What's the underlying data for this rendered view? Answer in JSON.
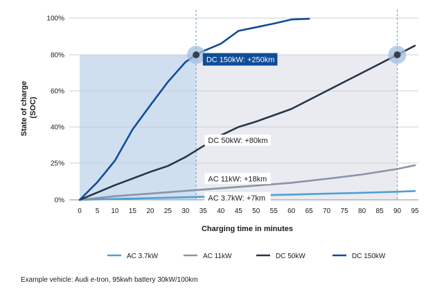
{
  "chart_data": {
    "type": "line",
    "xlabel": "Charging time in minutes",
    "ylabel_line1": "State of charge",
    "ylabel_line2": "(SOC)",
    "x_ticks": [
      0,
      5,
      10,
      15,
      20,
      25,
      30,
      35,
      40,
      45,
      50,
      55,
      60,
      65,
      70,
      75,
      80,
      85,
      90,
      95
    ],
    "xlim": [
      0,
      95
    ],
    "y_ticks": [
      {
        "value": 0,
        "label": "0%"
      },
      {
        "value": 25,
        "label": "25%"
      },
      {
        "value": 40,
        "label": "40%"
      },
      {
        "value": 60,
        "label": "60%"
      },
      {
        "value": 80,
        "label": "80%"
      },
      {
        "value": 100,
        "label": "100%"
      }
    ],
    "shaded_regions": [
      {
        "x_from": 0,
        "x_to": 33,
        "y_to": 80,
        "color": "#cfdff0"
      },
      {
        "x_from": 33,
        "x_to": 90,
        "y_to": 80,
        "color": "#e9ebf0"
      }
    ],
    "reference_lines_x": [
      33,
      90
    ],
    "markers": [
      {
        "x": 33,
        "y": 80
      },
      {
        "x": 90,
        "y": 80
      }
    ],
    "series": [
      {
        "name": "AC 3.7kW",
        "color": "#4e9fd6",
        "x": [
          0,
          10,
          20,
          30,
          40,
          50,
          60,
          70,
          80,
          90,
          95
        ],
        "y": [
          0,
          0.6,
          1.2,
          1.8,
          2.4,
          3.0,
          3.6,
          4.2,
          4.8,
          5.5,
          6
        ]
      },
      {
        "name": "AC 11kW",
        "color": "#8a94a6",
        "x": [
          0,
          10,
          20,
          30,
          40,
          50,
          60,
          70,
          80,
          90,
          95
        ],
        "y": [
          0,
          2.5,
          4.3,
          6.1,
          7.9,
          9.7,
          11.6,
          14.3,
          17.2,
          21,
          23.5
        ]
      },
      {
        "name": "DC 50kW",
        "color": "#253549",
        "x": [
          0,
          5,
          10,
          15,
          20,
          25,
          30,
          35,
          40,
          45,
          50,
          55,
          60,
          65,
          70,
          75,
          80,
          85,
          90,
          95
        ],
        "y": [
          0,
          5,
          10,
          14.5,
          19,
          23,
          27.5,
          32,
          36.5,
          40,
          43,
          46.5,
          50,
          55,
          60,
          65,
          70,
          75,
          80,
          85
        ]
      },
      {
        "name": "DC 150kW",
        "color": "#0f4c97",
        "x": [
          0,
          5,
          10,
          15,
          20,
          25,
          30,
          33,
          35,
          40,
          45,
          50,
          55,
          60,
          65
        ],
        "y": [
          0,
          12,
          26,
          39,
          52,
          65,
          76,
          80,
          82,
          86,
          93,
          95,
          97,
          99.2,
          99.6
        ]
      }
    ],
    "annotations": [
      {
        "text": "DC 150kW: +250km",
        "x": 35.5,
        "y": 77.5,
        "style": "filled"
      },
      {
        "text": "DC 50kW: +80km",
        "x": 36,
        "y": 34.5,
        "style": "plain"
      },
      {
        "text": "AC 11kW: +18km",
        "x": 36,
        "y": 14.5,
        "style": "plain"
      },
      {
        "text": "AC 3.7kW: +7km",
        "x": 36,
        "y": 1.5,
        "style": "plain"
      }
    ],
    "legend": {
      "placement": "bottom",
      "items": [
        {
          "label": "AC 3.7kW",
          "color": "#4e9fd6"
        },
        {
          "label": "AC 11kW",
          "color": "#8a94a6"
        },
        {
          "label": "DC 50kW",
          "color": "#253549"
        },
        {
          "label": "DC 150kW",
          "color": "#0f4c97"
        }
      ]
    },
    "footnote": "Example vehicle: Audi e-tron, 95kwh battery 30kW/100km"
  }
}
